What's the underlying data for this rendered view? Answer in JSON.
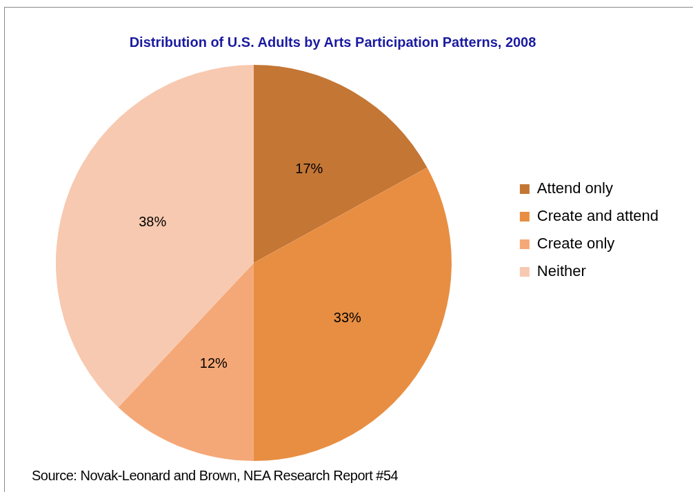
{
  "chart_data": {
    "type": "pie",
    "title": "Distribution of U.S. Adults by Arts Participation Patterns, 2008",
    "categories": [
      "Attend only",
      "Create and attend",
      "Create only",
      "Neither"
    ],
    "values": [
      17,
      33,
      12,
      38
    ],
    "colors": [
      "#c47635",
      "#e88e42",
      "#f5a877",
      "#f7c9b0"
    ],
    "value_labels": [
      "17%",
      "33%",
      "12%",
      "38%"
    ],
    "legend": "right",
    "annotations": [
      "Source: Novak-Leonard and Brown, NEA Research Report #54"
    ]
  }
}
